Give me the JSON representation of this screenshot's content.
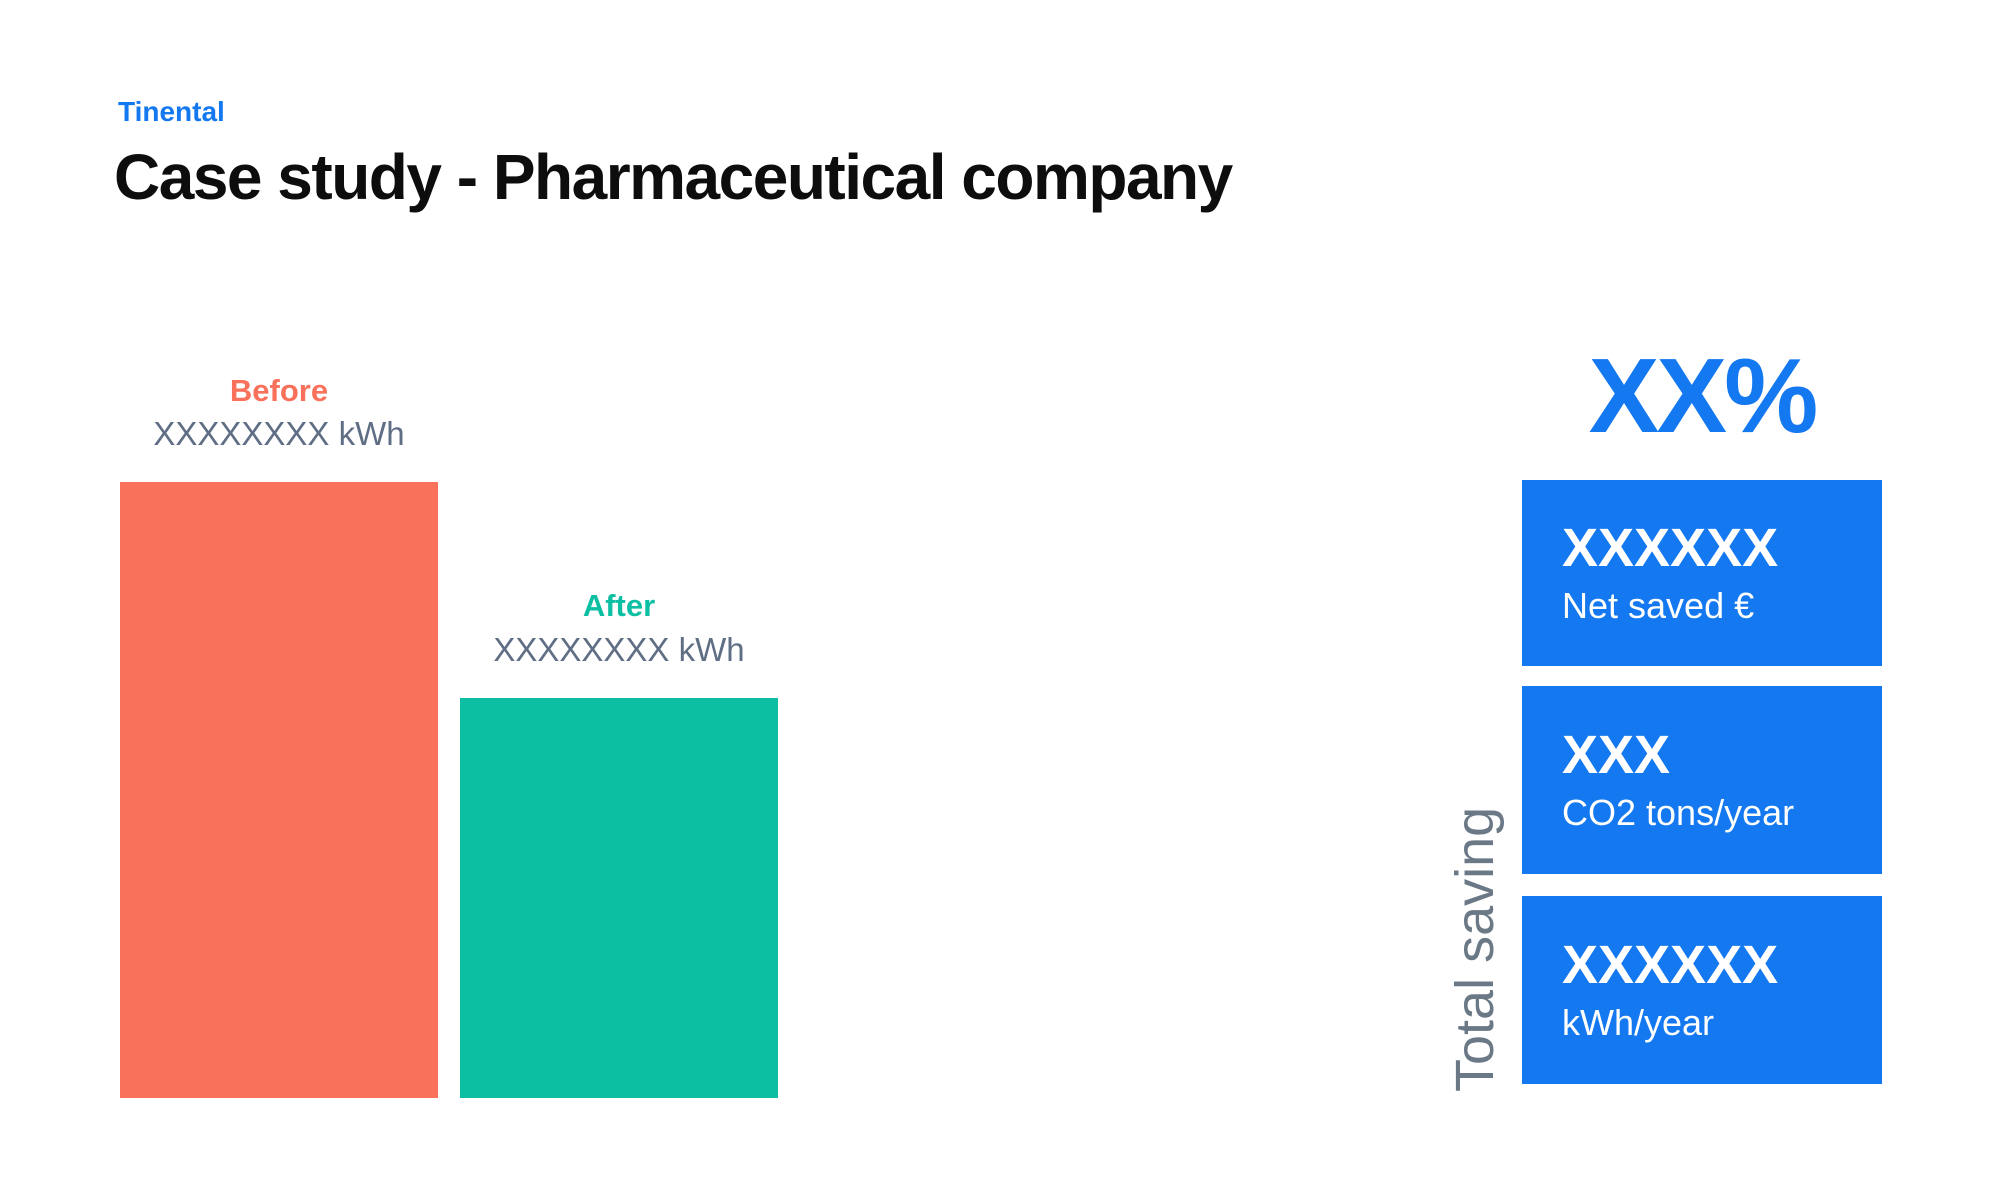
{
  "page": {
    "background": "#ffffff"
  },
  "colors": {
    "accent_blue": "#1478f0",
    "coral": "#f9715b",
    "teal": "#0cbfa3",
    "slate_text": "#5f6e84",
    "gray_vertical_label": "#6b7886",
    "title_black": "#0d0d0d",
    "stat_text_white": "#ffffff"
  },
  "header": {
    "brand": "Tinental",
    "title": "Case study - Pharmaceutical company"
  },
  "chart_data": {
    "type": "bar",
    "categories": [
      "Before",
      "After"
    ],
    "values": [
      100,
      65
    ],
    "value_labels": [
      "XXXXXXXX kWh",
      "XXXXXXXX kWh"
    ],
    "bar_colors": [
      "#f9715b",
      "#0cbfa3"
    ],
    "label_colors": [
      "#f9715b",
      "#0cbfa3"
    ],
    "title": "Case study - Pharmaceutical company",
    "xlabel": "",
    "ylabel": "",
    "ylim": [
      0,
      100
    ],
    "grid": false,
    "legend": "none",
    "note": "values are relative bar heights; numeric labels are placeholder X strings"
  },
  "savings": {
    "percent": "XX%",
    "vertical_label": "Total saving",
    "stats": [
      {
        "value": "XXXXXX",
        "label": "Net saved €"
      },
      {
        "value": "XXX",
        "label": "CO2 tons/year"
      },
      {
        "value": "XXXXXX",
        "label": "kWh/year"
      }
    ]
  }
}
